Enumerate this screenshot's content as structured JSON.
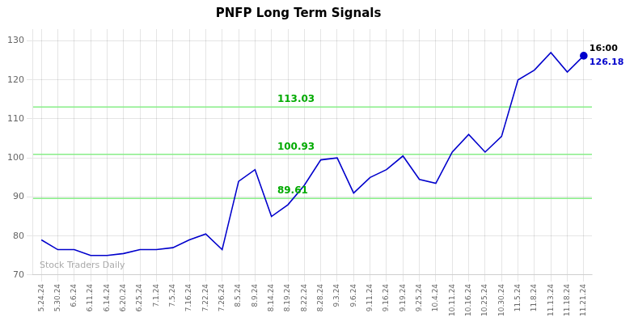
{
  "chart_data": {
    "type": "line",
    "title": "PNFP Long Term Signals",
    "categories": [
      "5.24.24",
      "5.30.24",
      "6.6.24",
      "6.11.24",
      "6.14.24",
      "6.20.24",
      "6.25.24",
      "7.1.24",
      "7.5.24",
      "7.16.24",
      "7.22.24",
      "7.26.24",
      "8.5.24",
      "8.9.24",
      "8.14.24",
      "8.19.24",
      "8.22.24",
      "8.28.24",
      "9.3.24",
      "9.6.24",
      "9.11.24",
      "9.16.24",
      "9.19.24",
      "9.25.24",
      "10.4.24",
      "10.11.24",
      "10.16.24",
      "10.25.24",
      "10.30.24",
      "11.5.24",
      "11.8.24",
      "11.13.24",
      "11.18.24",
      "11.21.24"
    ],
    "values": [
      79.0,
      76.5,
      76.5,
      75.0,
      75.0,
      75.5,
      76.5,
      76.5,
      77.0,
      79.0,
      80.5,
      76.5,
      94.0,
      97.0,
      85.0,
      88.0,
      93.0,
      99.5,
      100.0,
      91.0,
      95.0,
      97.0,
      100.5,
      94.5,
      93.5,
      101.5,
      106.0,
      101.5,
      105.5,
      120.0,
      122.5,
      127.0,
      122.0,
      126.18
    ],
    "color": "#0000cc",
    "hlines": [
      {
        "value": 89.61,
        "label": "89.61",
        "color": "#88ee88",
        "label_color": "#00aa00"
      },
      {
        "value": 100.93,
        "label": "100.93",
        "color": "#88ee88",
        "label_color": "#00aa00"
      },
      {
        "value": 113.03,
        "label": "113.03",
        "color": "#88ee88",
        "label_color": "#00aa00"
      }
    ],
    "watermark": "Stock Traders Daily",
    "end_labels": [
      {
        "text": "16:00",
        "color": "#000000"
      },
      {
        "text": "126.18",
        "color": "#0000cc"
      }
    ],
    "ylim": [
      70,
      133
    ],
    "yticks": [
      70,
      80,
      90,
      100,
      110,
      120,
      130
    ],
    "grid": true
  }
}
